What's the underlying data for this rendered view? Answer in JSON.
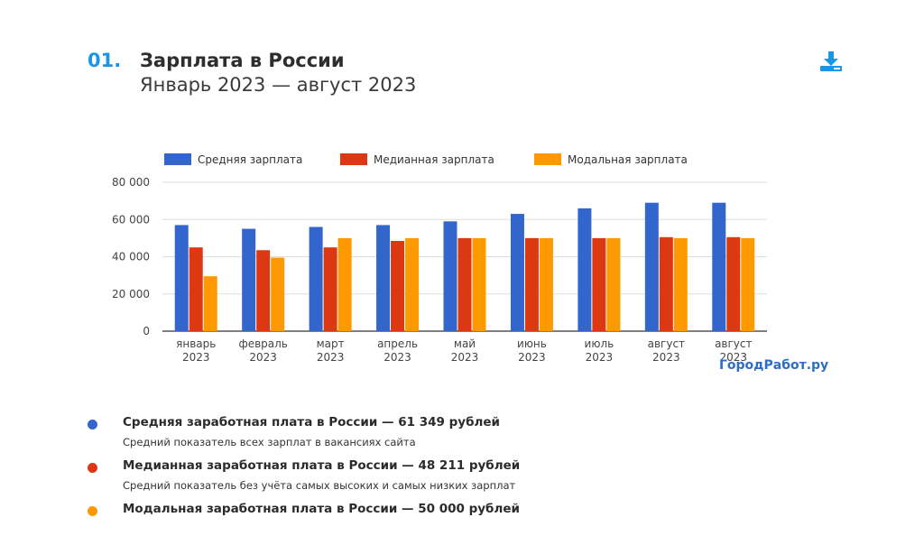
{
  "header": {
    "number": "01.",
    "title": "Зарплата в России",
    "subtitle": "Январь 2023 — август 2023"
  },
  "brand": "ГородРабот.ру",
  "colors": {
    "accent": "#1a96e6",
    "avg": "#3366cc",
    "median": "#dc3912",
    "mode": "#ff9900"
  },
  "icons": {
    "download": "download-icon"
  },
  "chart_data": {
    "type": "bar",
    "categories": [
      [
        "январь",
        "2023"
      ],
      [
        "февраль",
        "2023"
      ],
      [
        "март",
        "2023"
      ],
      [
        "апрель",
        "2023"
      ],
      [
        "май",
        "2023"
      ],
      [
        "июнь",
        "2023"
      ],
      [
        "июль",
        "2023"
      ],
      [
        "август",
        "2023"
      ],
      [
        "август",
        "2023"
      ]
    ],
    "series": [
      {
        "name": "Средняя зарплата",
        "color": "#3366cc",
        "values": [
          57000,
          55000,
          56000,
          57000,
          59000,
          63000,
          66000,
          69000,
          69000
        ]
      },
      {
        "name": "Медианная зарплата",
        "color": "#dc3912",
        "values": [
          45000,
          43500,
          45000,
          48500,
          50000,
          50000,
          50000,
          50500,
          50500
        ]
      },
      {
        "name": "Модальная зарплата",
        "color": "#ff9900",
        "values": [
          29500,
          39500,
          50000,
          50000,
          50000,
          50000,
          50000,
          50000,
          50000
        ]
      }
    ],
    "yticks": [
      "0",
      "20 000",
      "40 000",
      "60 000",
      "80 000"
    ],
    "ylim": [
      0,
      80000
    ],
    "grid": true,
    "legend": "top"
  },
  "notes": [
    {
      "title": "Средняя заработная плата в России — 61 349 рублей",
      "desc": "Средний показатель всех зарплат в вакансиях сайта",
      "color": "#3366cc"
    },
    {
      "title": "Медианная заработная плата в России — 48 211 рублей",
      "desc": "Средний показатель без учёта самых высоких и самых низких зарплат",
      "color": "#dc3912"
    },
    {
      "title": "Модальная заработная плата в России — 50 000 рублей",
      "desc": "",
      "color": "#ff9900"
    }
  ]
}
